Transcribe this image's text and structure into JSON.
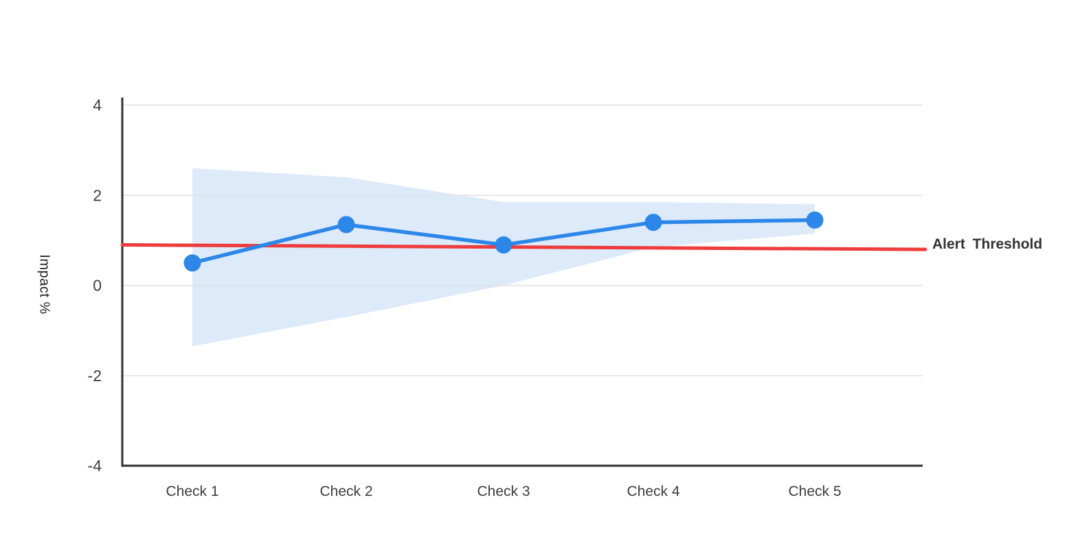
{
  "chart_data": {
    "type": "line",
    "title": "",
    "xlabel": "",
    "ylabel": "Impact %",
    "categories": [
      "Check 1",
      "Check 2",
      "Check 3",
      "Check 4",
      "Check 5"
    ],
    "series": [
      {
        "name": "Impact",
        "values": [
          0.5,
          1.35,
          0.9,
          1.4,
          1.45
        ],
        "color": "#2d87e9",
        "marker": "circle"
      }
    ],
    "confidence_band": {
      "upper": [
        2.6,
        2.4,
        1.85,
        1.85,
        1.8
      ],
      "lower": [
        -1.35,
        -0.7,
        0.0,
        0.85,
        1.15
      ],
      "color": "#ddeafa"
    },
    "threshold": {
      "label": "Alert Threshold",
      "start_value": 0.9,
      "end_value": 0.8,
      "color": "#ee3c3c"
    },
    "yticks": [
      "4",
      "2",
      "0",
      "-2",
      "-4"
    ],
    "ytick_values": [
      4,
      2,
      0,
      -2,
      -4
    ],
    "ylim": [
      -4,
      4.15
    ],
    "grid": true,
    "legend_position": "none"
  },
  "colors": {
    "background": "#ffffff",
    "grid": "#e1e1e1",
    "axis": "#2f2f2f",
    "tick_text": "#3d3d3d"
  }
}
